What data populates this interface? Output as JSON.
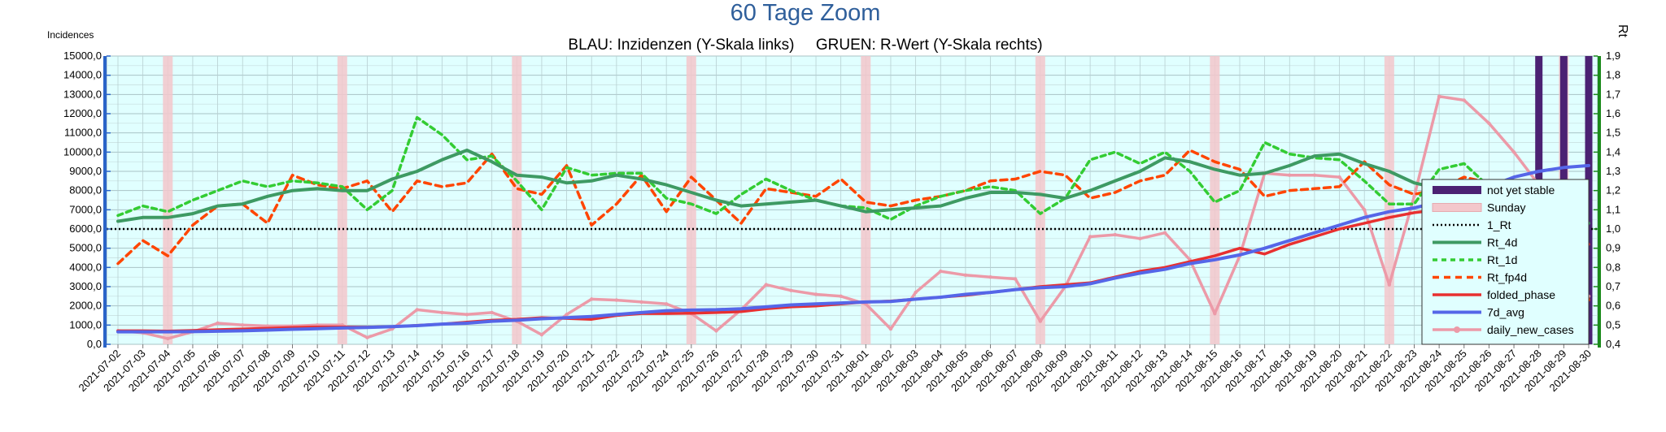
{
  "chart_data": {
    "type": "line",
    "title": "60 Tage Zoom",
    "subtitle": "BLAU: Inzidenzen (Y-Skala links)     GRUEN: R-Wert (Y-Skala rechts)",
    "ylabel_left": "Incidences",
    "ylabel_right": "Rt",
    "xlabel": "",
    "ylim_left": [
      0,
      15000
    ],
    "ylim_right": [
      0.4,
      1.9
    ],
    "left_step": 1000,
    "right_step": 0.1,
    "grid": true,
    "legend_position": "right",
    "categories": [
      "2021-07-02",
      "2021-07-03",
      "2021-07-04",
      "2021-07-05",
      "2021-07-06",
      "2021-07-07",
      "2021-07-08",
      "2021-07-09",
      "2021-07-10",
      "2021-07-11",
      "2021-07-12",
      "2021-07-13",
      "2021-07-14",
      "2021-07-15",
      "2021-07-16",
      "2021-07-17",
      "2021-07-18",
      "2021-07-19",
      "2021-07-20",
      "2021-07-21",
      "2021-07-22",
      "2021-07-23",
      "2021-07-24",
      "2021-07-25",
      "2021-07-26",
      "2021-07-27",
      "2021-07-28",
      "2021-07-29",
      "2021-07-30",
      "2021-07-31",
      "2021-08-01",
      "2021-08-02",
      "2021-08-03",
      "2021-08-04",
      "2021-08-05",
      "2021-08-06",
      "2021-08-07",
      "2021-08-08",
      "2021-08-09",
      "2021-08-10",
      "2021-08-11",
      "2021-08-12",
      "2021-08-13",
      "2021-08-14",
      "2021-08-15",
      "2021-08-16",
      "2021-08-17",
      "2021-08-18",
      "2021-08-19",
      "2021-08-20",
      "2021-08-21",
      "2021-08-22",
      "2021-08-23",
      "2021-08-24",
      "2021-08-25",
      "2021-08-26",
      "2021-08-27",
      "2021-08-28",
      "2021-08-29",
      "2021-08-30"
    ],
    "sundays": [
      "2021-07-04",
      "2021-07-11",
      "2021-07-18",
      "2021-07-25",
      "2021-08-01",
      "2021-08-08",
      "2021-08-15",
      "2021-08-22",
      "2021-08-29"
    ],
    "not_yet_stable": [
      "2021-08-28",
      "2021-08-29",
      "2021-08-30"
    ],
    "legend": [
      {
        "key": "not_yet_stable",
        "label": "not yet stable"
      },
      {
        "key": "sunday",
        "label": "Sunday"
      },
      {
        "key": "one_rt",
        "label": "1_Rt"
      },
      {
        "key": "rt_4d",
        "label": "Rt_4d"
      },
      {
        "key": "rt_1d",
        "label": "Rt_1d"
      },
      {
        "key": "rt_fp4d",
        "label": "Rt_fp4d"
      },
      {
        "key": "folded_phase",
        "label": "folded_phase"
      },
      {
        "key": "avg7d",
        "label": "7d_avg"
      },
      {
        "key": "daily",
        "label": "daily_new_cases"
      }
    ],
    "series": [
      {
        "key": "rt_4d",
        "name": "Rt_4d",
        "axis": "right",
        "color": "#3e9a63",
        "values": [
          1.04,
          1.06,
          1.06,
          1.08,
          1.12,
          1.13,
          1.17,
          1.2,
          1.21,
          1.2,
          1.2,
          1.26,
          1.3,
          1.36,
          1.41,
          1.35,
          1.28,
          1.27,
          1.24,
          1.25,
          1.28,
          1.26,
          1.23,
          1.19,
          1.15,
          1.12,
          1.13,
          1.14,
          1.15,
          1.12,
          1.09,
          1.1,
          1.11,
          1.12,
          1.16,
          1.19,
          1.19,
          1.18,
          1.16,
          1.2,
          1.25,
          1.3,
          1.37,
          1.35,
          1.31,
          1.28,
          1.29,
          1.33,
          1.38,
          1.39,
          1.34,
          1.3,
          1.24,
          1.21,
          1.22,
          1.25,
          1.23,
          1.18,
          1.13,
          1.03
        ]
      },
      {
        "key": "rt_1d",
        "name": "Rt_1d",
        "axis": "right",
        "color": "#33cc33",
        "values": [
          1.07,
          1.12,
          1.09,
          1.15,
          1.2,
          1.25,
          1.22,
          1.25,
          1.24,
          1.22,
          1.1,
          1.2,
          1.58,
          1.49,
          1.36,
          1.38,
          1.25,
          1.1,
          1.32,
          1.28,
          1.29,
          1.29,
          1.16,
          1.13,
          1.08,
          1.18,
          1.26,
          1.2,
          1.15,
          1.12,
          1.11,
          1.05,
          1.12,
          1.17,
          1.2,
          1.22,
          1.2,
          1.08,
          1.16,
          1.36,
          1.4,
          1.34,
          1.4,
          1.3,
          1.14,
          1.2,
          1.45,
          1.39,
          1.37,
          1.36,
          1.25,
          1.13,
          1.13,
          1.31,
          1.34,
          1.22,
          1.2,
          1.08,
          1.07,
          0.93
        ]
      },
      {
        "key": "rt_fp4d",
        "name": "Rt_fp4d",
        "axis": "right",
        "color": "#ff4500",
        "values": [
          0.82,
          0.94,
          0.86,
          1.02,
          1.12,
          1.13,
          1.03,
          1.28,
          1.23,
          1.21,
          1.25,
          1.09,
          1.25,
          1.22,
          1.24,
          1.39,
          1.21,
          1.18,
          1.33,
          1.02,
          1.13,
          1.28,
          1.09,
          1.27,
          1.15,
          1.03,
          1.21,
          1.19,
          1.17,
          1.26,
          1.14,
          1.12,
          1.15,
          1.17,
          1.2,
          1.25,
          1.26,
          1.3,
          1.28,
          1.16,
          1.19,
          1.25,
          1.28,
          1.41,
          1.35,
          1.31,
          1.17,
          1.2,
          1.21,
          1.22,
          1.35,
          1.23,
          1.18,
          1.21,
          1.27,
          1.24,
          1.2,
          1.13,
          1.03,
          0.63
        ]
      },
      {
        "key": "folded_phase",
        "name": "folded_phase",
        "axis": "left",
        "color": "#e83030",
        "values": [
          700,
          700,
          690,
          720,
          760,
          800,
          830,
          870,
          900,
          900,
          890,
          920,
          980,
          1050,
          1150,
          1250,
          1300,
          1380,
          1350,
          1300,
          1500,
          1600,
          1600,
          1620,
          1650,
          1700,
          1850,
          1950,
          2000,
          2100,
          2200,
          2250,
          2350,
          2450,
          2550,
          2700,
          2850,
          3000,
          3100,
          3200,
          3500,
          3800,
          4000,
          4300,
          4600,
          5000,
          4700,
          5200,
          5600,
          6000,
          6300,
          6600,
          6850,
          7000,
          7400,
          8100,
          8200,
          8100,
          7200,
          5200
        ]
      },
      {
        "key": "avg7d",
        "name": "7d_avg",
        "axis": "left",
        "color": "#5566e8",
        "values": [
          650,
          650,
          650,
          660,
          680,
          700,
          740,
          780,
          810,
          850,
          880,
          920,
          970,
          1050,
          1100,
          1200,
          1250,
          1330,
          1380,
          1450,
          1550,
          1650,
          1750,
          1780,
          1800,
          1850,
          1950,
          2050,
          2100,
          2150,
          2200,
          2230,
          2350,
          2450,
          2600,
          2700,
          2850,
          2950,
          3000,
          3150,
          3450,
          3700,
          3900,
          4200,
          4400,
          4650,
          5000,
          5400,
          5800,
          6200,
          6600,
          6900,
          7100,
          7400,
          7700,
          8200,
          8700,
          9000,
          9200,
          9300
        ]
      },
      {
        "key": "daily",
        "name": "daily_new_cases",
        "axis": "left",
        "color": "#ec9aa8",
        "values": [
          700,
          600,
          300,
          650,
          1100,
          1000,
          950,
          950,
          1000,
          1000,
          350,
          800,
          1800,
          1650,
          1550,
          1650,
          1200,
          500,
          1550,
          2350,
          2300,
          2200,
          2100,
          1600,
          700,
          1800,
          3100,
          2800,
          2600,
          2500,
          2100,
          800,
          2700,
          3800,
          3600,
          3500,
          3400,
          1200,
          3000,
          5600,
          5700,
          5500,
          5800,
          4400,
          1600,
          4600,
          8900,
          8800,
          8800,
          8700,
          7000,
          3100,
          7700,
          12900,
          12700,
          11500,
          10000,
          8300,
          3800,
          2500
        ]
      }
    ]
  }
}
